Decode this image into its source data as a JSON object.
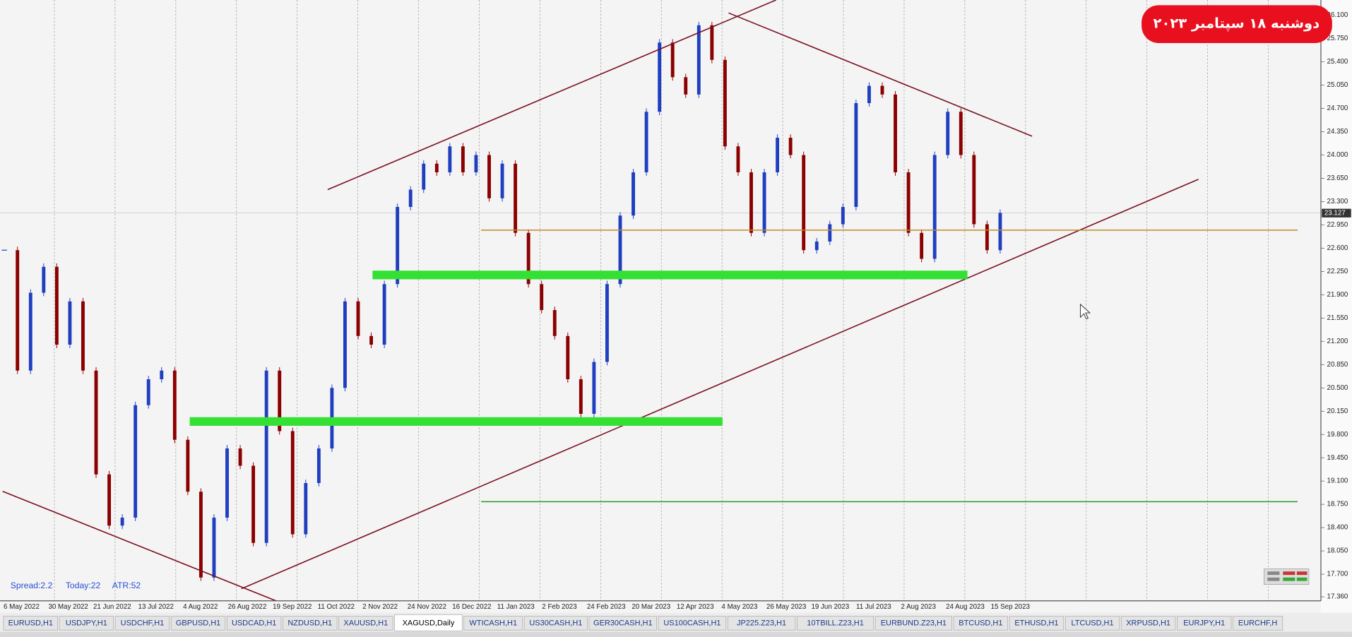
{
  "badge": "دوشنبه ۱۸ سپتامبر ۲۰۲۳",
  "chart_data": {
    "type": "candlestick",
    "closes": [
      22.57,
      20.76,
      21.93,
      22.32,
      21.15,
      21.8,
      20.76,
      19.2,
      18.43,
      18.55,
      20.24,
      20.63,
      20.76,
      19.72,
      18.94,
      17.65,
      18.55,
      19.59,
      19.33,
      18.17,
      20.76,
      19.85,
      18.3,
      19.07,
      19.59,
      20.5,
      21.8,
      21.28,
      21.15,
      22.06,
      23.22,
      23.48,
      23.87,
      23.74,
      24.13,
      23.74,
      24.0,
      23.35,
      23.87,
      22.83,
      22.06,
      21.67,
      21.28,
      20.63,
      20.11,
      20.89,
      22.06,
      23.09,
      23.74,
      24.65,
      25.69,
      25.17,
      24.91,
      25.95,
      25.43,
      24.13,
      23.74,
      22.83,
      23.74,
      24.26,
      24.0,
      22.57,
      22.7,
      22.96,
      23.22,
      24.78,
      25.04,
      24.91,
      23.74,
      22.83,
      22.44,
      24.0,
      24.65,
      24.0,
      22.96,
      22.57,
      23.13
    ],
    "up_color": "#1f3fbf",
    "down_color": "#8b0000",
    "ylim": [
      17.3,
      26.33
    ],
    "yticks": [
      {
        "value": 26.1,
        "label": "26.100"
      },
      {
        "value": 25.75,
        "label": "25.750"
      },
      {
        "value": 25.4,
        "label": "25.400"
      },
      {
        "value": 25.05,
        "label": "25.050"
      },
      {
        "value": 24.7,
        "label": "24.700"
      },
      {
        "value": 24.35,
        "label": "24.350"
      },
      {
        "value": 24,
        "label": "24.000"
      },
      {
        "value": 23.65,
        "label": "23.650"
      },
      {
        "value": 23.3,
        "label": "23.300"
      },
      {
        "value": 22.95,
        "label": "22.950"
      },
      {
        "value": 22.6,
        "label": "22.600"
      },
      {
        "value": 22.25,
        "label": "22.250"
      },
      {
        "value": 21.9,
        "label": "21.900"
      },
      {
        "value": 21.55,
        "label": "21.550"
      },
      {
        "value": 21.2,
        "label": "21.200"
      },
      {
        "value": 20.85,
        "label": "20.850"
      },
      {
        "value": 20.5,
        "label": "20.500"
      },
      {
        "value": 20.15,
        "label": "20.150"
      },
      {
        "value": 19.8,
        "label": "19.800"
      },
      {
        "value": 19.45,
        "label": "19.450"
      },
      {
        "value": 19.1,
        "label": "19.100"
      },
      {
        "value": 18.75,
        "label": "18.750"
      },
      {
        "value": 18.4,
        "label": "18.400"
      },
      {
        "value": 18.05,
        "label": "18.050"
      },
      {
        "value": 17.7,
        "label": "17.700"
      },
      {
        "value": 17.36,
        "label": "17.360"
      }
    ],
    "current_price": {
      "value": 23.127,
      "label": "23.127"
    },
    "x_labels": [
      "6 May 2022",
      "30 May 2022",
      "21 Jun 2022",
      "13 Jul 2022",
      "4 Aug 2022",
      "26 Aug 2022",
      "19 Sep 2022",
      "11 Oct 2022",
      "2 Nov 2022",
      "24 Nov 2022",
      "16 Dec 2022",
      "11 Jan 2023",
      "2 Feb 2023",
      "24 Feb 2023",
      "20 Mar 2023",
      "12 Apr 2023",
      "4 May 2023",
      "26 May 2023",
      "19 Jun 2023",
      "11 Jul 2023",
      "2 Aug 2023",
      "24 Aug 2023",
      "15 Sep 2023"
    ]
  },
  "status": {
    "spread": "Spread:2.2",
    "today": "Today:22",
    "atr": "ATR:52"
  },
  "tabs": [
    "EURUSD,H1",
    "USDJPY,H1",
    "USDCHF,H1",
    "GBPUSD,H1",
    "USDCAD,H1",
    "NZDUSD,H1",
    "XAUUSD,H1",
    "XAGUSD,Daily",
    "WTICASH,H1",
    "US30CASH,H1",
    "GER30CASH,H1",
    "US100CASH,H1",
    "JP225.Z23,H1",
    "10TBILL.Z23,H1",
    "EURBUND.Z23,H1",
    "BTCUSD,H1",
    "ETHUSD,H1",
    "LTCUSD,H1",
    "XRPUSD,H1",
    "EURJPY,H1",
    "EURCHF,H"
  ],
  "active_tab": 7
}
